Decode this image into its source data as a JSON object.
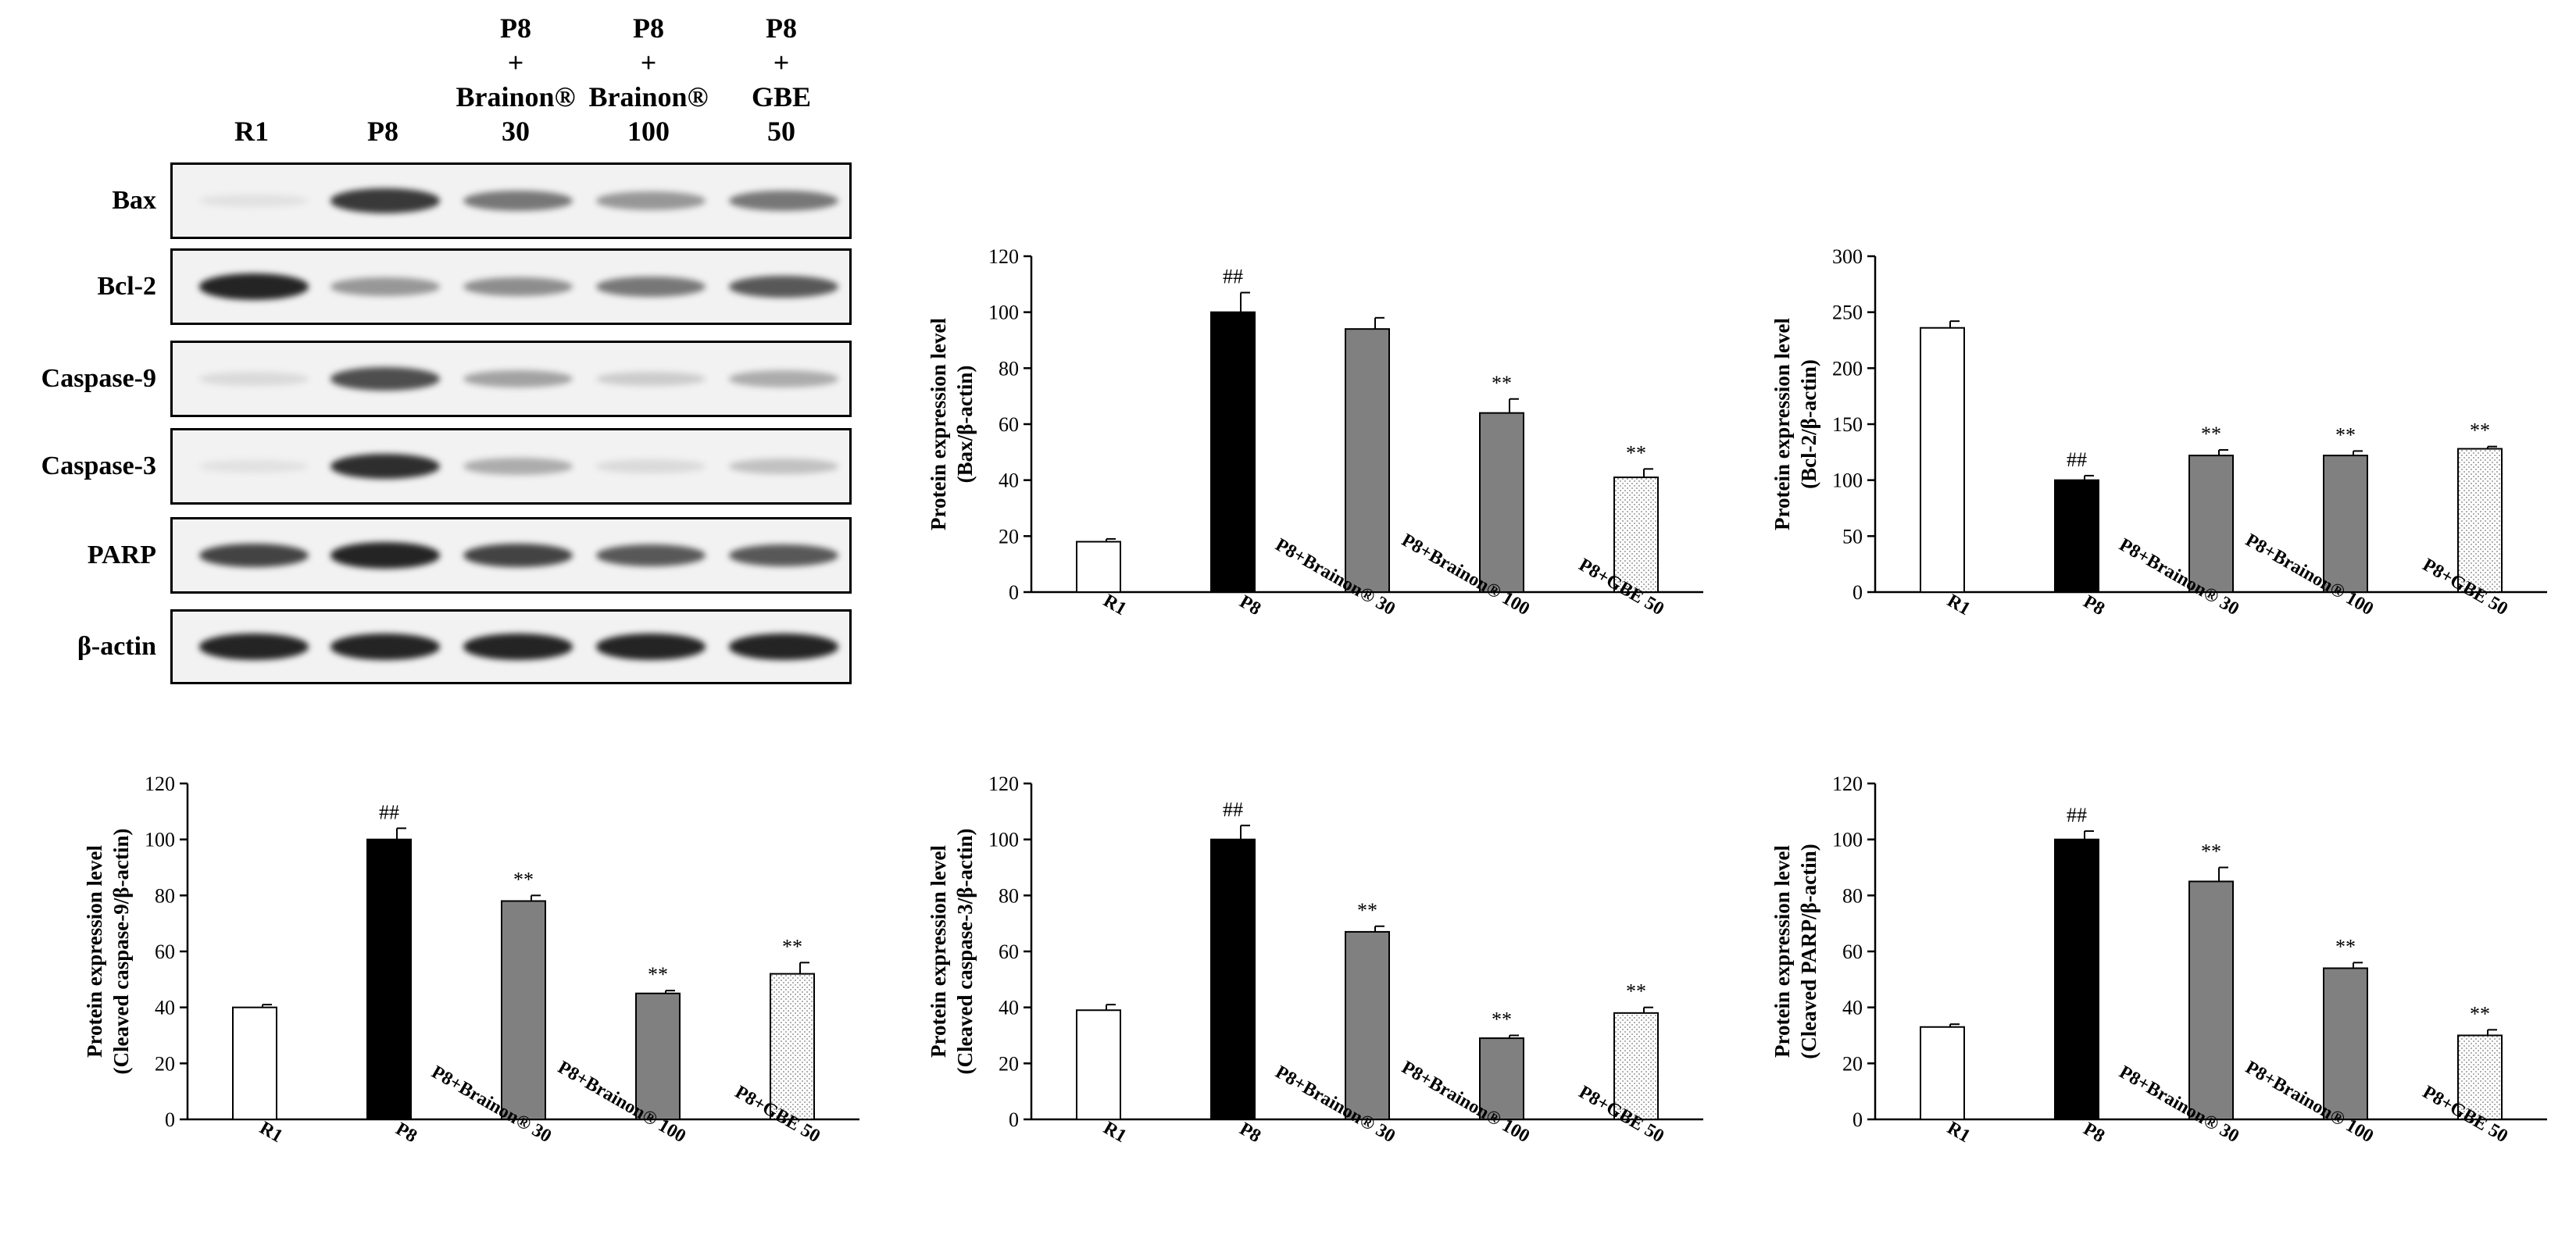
{
  "blot": {
    "lane_headers": [
      {
        "lines": [
          "R1"
        ]
      },
      {
        "lines": [
          "P8"
        ]
      },
      {
        "lines": [
          "P8",
          "+",
          "Brainon®",
          "30"
        ]
      },
      {
        "lines": [
          "P8",
          "+",
          "Brainon®",
          "100"
        ]
      },
      {
        "lines": [
          "P8",
          "+",
          "GBE",
          "50"
        ]
      }
    ],
    "rows": [
      {
        "label": "Bax",
        "intensity": [
          0.05,
          0.85,
          0.55,
          0.4,
          0.55
        ]
      },
      {
        "label": "Bcl-2",
        "intensity": [
          0.95,
          0.4,
          0.45,
          0.55,
          0.7
        ]
      },
      {
        "label": "Caspase-9",
        "intensity": [
          0.08,
          0.75,
          0.35,
          0.15,
          0.3
        ]
      },
      {
        "label": "Caspase-3",
        "intensity": [
          0.05,
          0.9,
          0.3,
          0.08,
          0.2
        ]
      },
      {
        "label": "PARP",
        "intensity": [
          0.8,
          0.95,
          0.8,
          0.7,
          0.7
        ]
      },
      {
        "label": "β-actin",
        "intensity": [
          0.95,
          0.95,
          0.95,
          0.95,
          0.95
        ]
      }
    ]
  },
  "colors": {
    "white_bar": "#ffffff",
    "black_bar": "#000000",
    "gray_bar": "#808080",
    "dotted_bar_pattern": "#b0b0b0",
    "axis": "#000000"
  },
  "chart_data": [
    {
      "type": "bar",
      "categories": [
        "R1",
        "P8",
        "P8+Brainon® 30",
        "P8+Brainon® 100",
        "P8+GBE 50"
      ],
      "values": [
        18,
        100,
        94,
        64,
        41
      ],
      "errors": [
        1,
        7,
        4,
        5,
        3
      ],
      "annotations": [
        "",
        "##",
        "",
        "**",
        "**"
      ],
      "ylabel": [
        "Protein expression level",
        "(Bax/β-actin)"
      ],
      "ylim": [
        0,
        120
      ],
      "yticks": [
        0,
        20,
        40,
        60,
        80,
        100,
        120
      ],
      "fills": [
        "white",
        "black",
        "gray",
        "gray",
        "dotted"
      ]
    },
    {
      "type": "bar",
      "categories": [
        "R1",
        "P8",
        "P8+Brainon® 30",
        "P8+Brainon® 100",
        "P8+GBE 50"
      ],
      "values": [
        236,
        100,
        122,
        122,
        128
      ],
      "errors": [
        6,
        4,
        5,
        4,
        2
      ],
      "annotations": [
        "",
        "##",
        "**",
        "**",
        "**"
      ],
      "ylabel": [
        "Protein expression level",
        "(Bcl-2/β-actin)"
      ],
      "ylim": [
        0,
        300
      ],
      "yticks": [
        0,
        50,
        100,
        150,
        200,
        250,
        300
      ],
      "fills": [
        "white",
        "black",
        "gray",
        "gray",
        "dotted"
      ]
    },
    {
      "type": "bar",
      "categories": [
        "R1",
        "P8",
        "P8+Brainon® 30",
        "P8+Brainon® 100",
        "P8+GBE 50"
      ],
      "values": [
        40,
        100,
        78,
        45,
        52
      ],
      "errors": [
        1,
        4,
        2,
        1,
        4
      ],
      "annotations": [
        "",
        "##",
        "**",
        "**",
        "**"
      ],
      "ylabel": [
        "Protein expression level",
        "(Cleaved caspase-9/β-actin)"
      ],
      "ylim": [
        0,
        120
      ],
      "yticks": [
        0,
        20,
        40,
        60,
        80,
        100,
        120
      ],
      "fills": [
        "white",
        "black",
        "gray",
        "gray",
        "dotted"
      ]
    },
    {
      "type": "bar",
      "categories": [
        "R1",
        "P8",
        "P8+Brainon® 30",
        "P8+Brainon® 100",
        "P8+GBE 50"
      ],
      "values": [
        39,
        100,
        67,
        29,
        38
      ],
      "errors": [
        2,
        5,
        2,
        1,
        2
      ],
      "annotations": [
        "",
        "##",
        "**",
        "**",
        "**"
      ],
      "ylabel": [
        "Protein expression level",
        "(Cleaved caspase-3/β-actin)"
      ],
      "ylim": [
        0,
        120
      ],
      "yticks": [
        0,
        20,
        40,
        60,
        80,
        100,
        120
      ],
      "fills": [
        "white",
        "black",
        "gray",
        "gray",
        "dotted"
      ]
    },
    {
      "type": "bar",
      "categories": [
        "R1",
        "P8",
        "P8+Brainon® 30",
        "P8+Brainon® 100",
        "P8+GBE 50"
      ],
      "values": [
        33,
        100,
        85,
        54,
        30
      ],
      "errors": [
        1,
        3,
        5,
        2,
        2
      ],
      "annotations": [
        "",
        "##",
        "**",
        "**",
        "**"
      ],
      "ylabel": [
        "Protein expression level",
        "(Cleaved PARP/β-actin)"
      ],
      "ylim": [
        0,
        120
      ],
      "yticks": [
        0,
        20,
        40,
        60,
        80,
        100,
        120
      ],
      "fills": [
        "white",
        "black",
        "gray",
        "gray",
        "dotted"
      ]
    }
  ]
}
